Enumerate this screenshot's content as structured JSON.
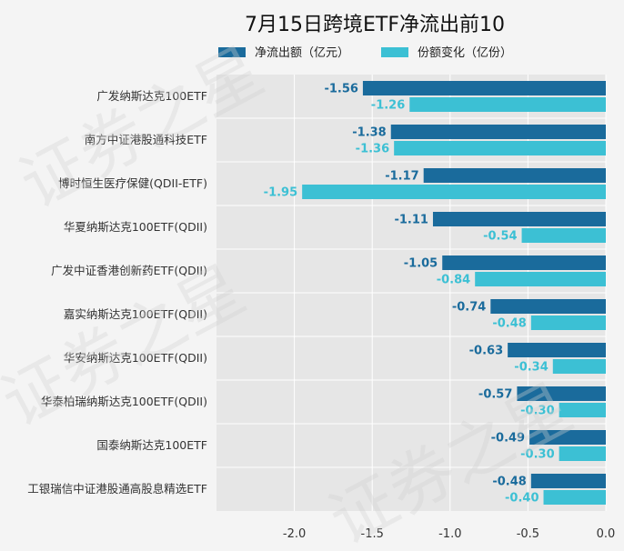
{
  "chart_data": {
    "type": "bar",
    "orientation": "horizontal",
    "title": "7月15日跨境ETF净流出前10",
    "categories": [
      "广发纳斯达克100ETF",
      "南方中证港股通科技ETF",
      "博时恒生医疗保健(QDII-ETF)",
      "华夏纳斯达克100ETF(QDII)",
      "广发中证香港创新药ETF(QDII)",
      "嘉实纳斯达克100ETF(QDII)",
      "华安纳斯达克100ETF(QDII)",
      "华泰柏瑞纳斯达克100ETF(QDII)",
      "国泰纳斯达克100ETF",
      "工银瑞信中证港股通高股息精选ETF"
    ],
    "series": [
      {
        "name": "净流出额（亿元）",
        "color": "#1a6b9c",
        "values": [
          -1.56,
          -1.38,
          -1.17,
          -1.11,
          -1.05,
          -0.74,
          -0.63,
          -0.57,
          -0.49,
          -0.48
        ],
        "labels": [
          "-1.56",
          "-1.38",
          "-1.17",
          "-1.11",
          "-1.05",
          "-0.74",
          "-0.63",
          "-0.57",
          "-0.49",
          "-0.48"
        ]
      },
      {
        "name": "份额变化（亿份）",
        "color": "#3cc0d4",
        "values": [
          -1.26,
          -1.36,
          -1.95,
          -0.54,
          -0.84,
          -0.48,
          -0.34,
          -0.3,
          -0.3,
          -0.4
        ],
        "labels": [
          "-1.26",
          "-1.36",
          "-1.95",
          "-0.54",
          "-0.84",
          "-0.48",
          "-0.34",
          "-0.30",
          "-0.30",
          "-0.40"
        ]
      }
    ],
    "xlim": [
      -2.5,
      0.0
    ],
    "xticks": [
      "-2.0",
      "-1.5",
      "-1.0",
      "-0.5",
      "0.0"
    ],
    "xtick_values": [
      -2.0,
      -1.5,
      -1.0,
      -0.5,
      0.0
    ],
    "grid": true,
    "legend_position": "top"
  },
  "watermark": "证券之星"
}
